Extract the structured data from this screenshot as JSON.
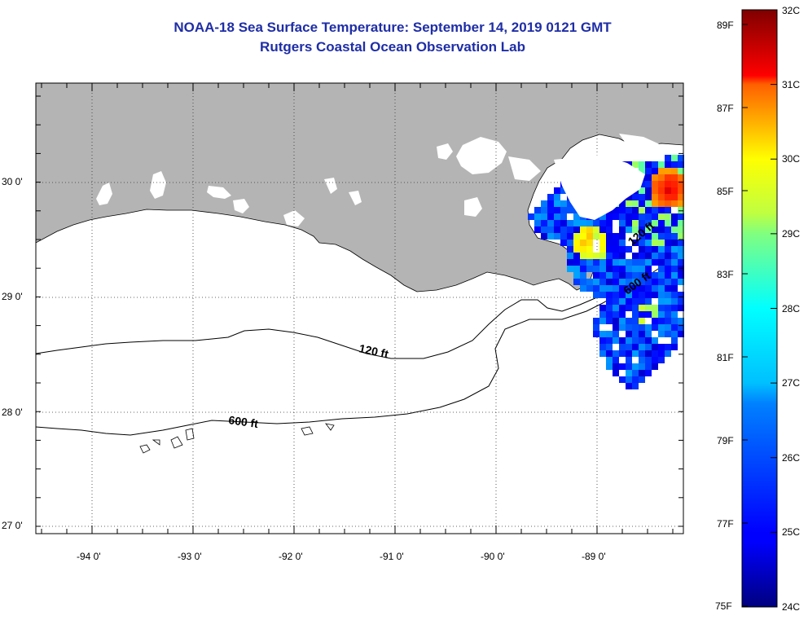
{
  "header": {
    "title": "NOAA-18 Sea Surface Temperature:  September 14, 2019 0121 GMT",
    "subtitle": "Rutgers Coastal Ocean Observation Lab"
  },
  "map": {
    "lat_labels": [
      "30 0'",
      "29 0'",
      "28 0'",
      "27 0'"
    ],
    "lon_labels": [
      "-94 0'",
      "-93 0'",
      "-92 0'",
      "-91 0'",
      "-90 0'",
      "-89 0'"
    ],
    "lat_range": [
      26.95,
      30.85
    ],
    "lon_range": [
      -94.55,
      -88.0
    ],
    "contours": [
      {
        "label": "120 ft"
      },
      {
        "label": "600 ft"
      },
      {
        "label": "120 ft"
      },
      {
        "label": "600 ft"
      }
    ],
    "colors": {
      "land": "#b4b4b4",
      "clouds": "#ffffff",
      "title": "#1f2ea6"
    }
  },
  "colorbar": {
    "celsius_labels": [
      "32C",
      "31C",
      "30C",
      "29C",
      "28C",
      "27C",
      "26C",
      "25C",
      "24C"
    ],
    "fahrenheit_labels": [
      "89F",
      "87F",
      "85F",
      "83F",
      "81F",
      "79F",
      "77F",
      "75F"
    ],
    "range_c": [
      24,
      32
    ],
    "colormap": "jet"
  }
}
